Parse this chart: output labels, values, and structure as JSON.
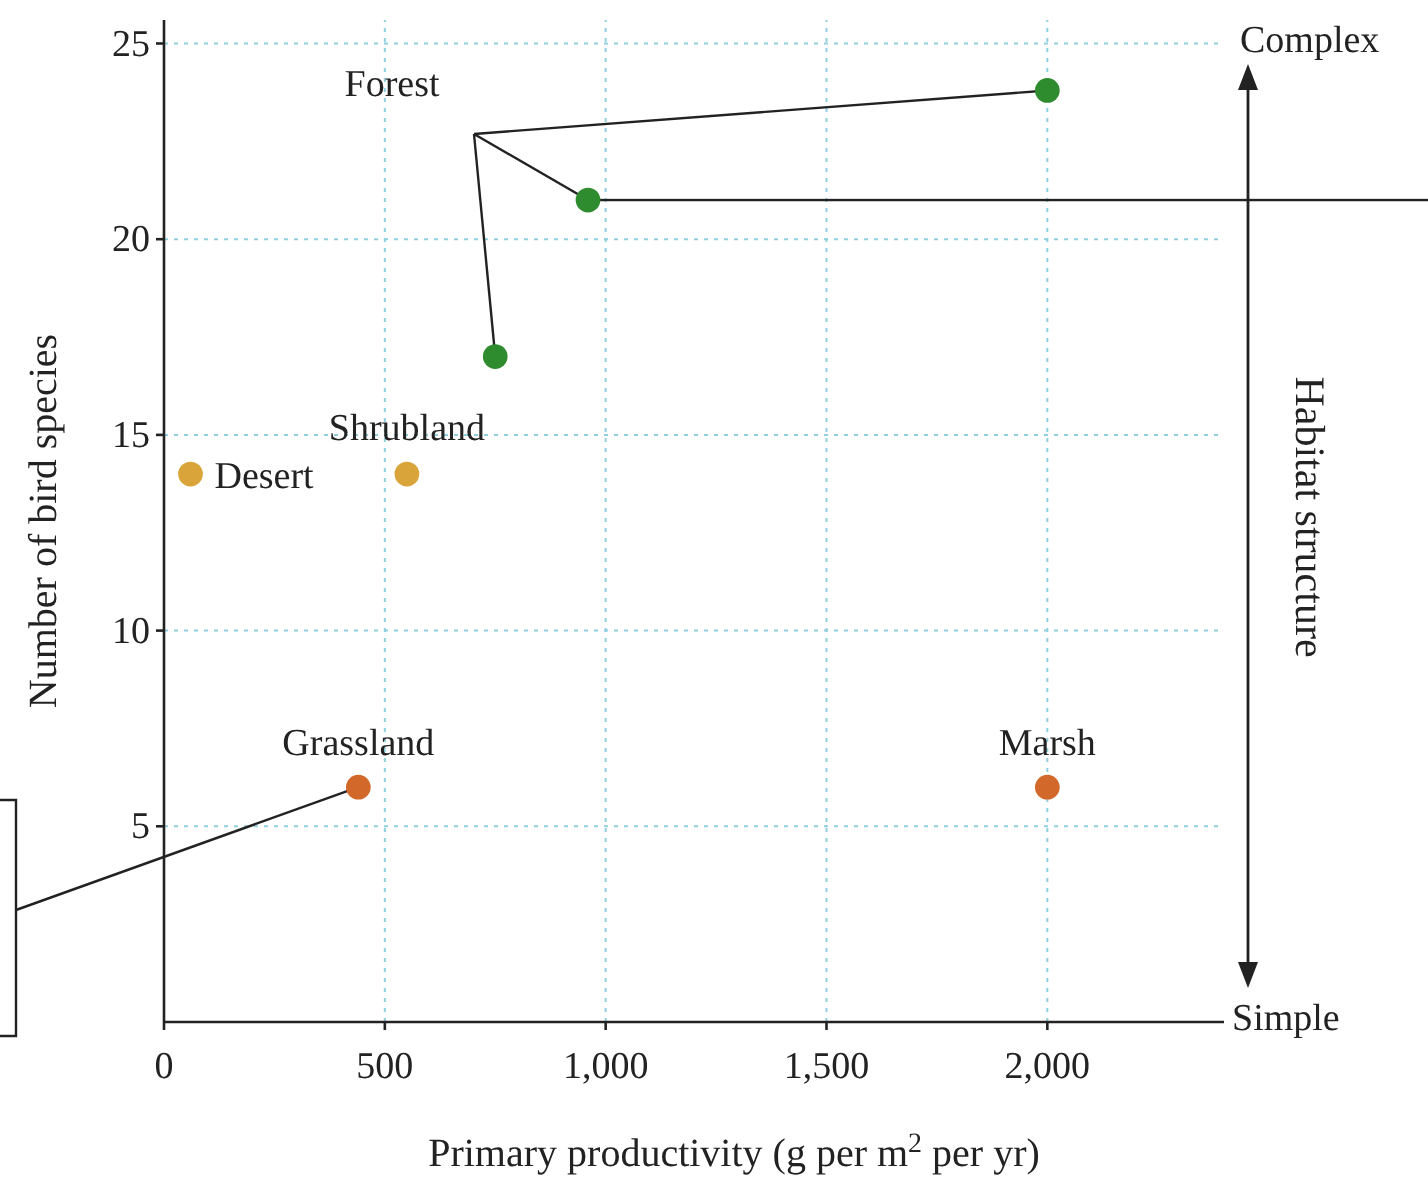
{
  "chart_data": {
    "type": "scatter",
    "xlabel": "Primary productivity (g per m$^{2}$ per yr)",
    "ylabel": "Number of bird species",
    "xlim": [
      0,
      2400
    ],
    "ylim": [
      0,
      25.6
    ],
    "xticks": [
      0,
      500,
      {
        "value": 1000,
        "label": "1,000"
      },
      {
        "value": 1500,
        "label": "1,500"
      },
      {
        "value": 2000,
        "label": "2,000"
      }
    ],
    "yticks": [
      5,
      10,
      15,
      20,
      25
    ],
    "grid": true,
    "marker": "circle",
    "legend": false,
    "series": [
      {
        "name": "Forest",
        "color": "#2e8b2e",
        "x": [
          2000,
          960,
          750
        ],
        "values": [
          23.8,
          21,
          17
        ]
      },
      {
        "name": "Shrubland",
        "color": "#d9a53a",
        "x": [
          550
        ],
        "values": [
          14
        ]
      },
      {
        "name": "Desert",
        "color": "#d9a53a",
        "x": [
          60
        ],
        "values": [
          14
        ]
      },
      {
        "name": "Grassland",
        "color": "#d2692a",
        "x": [
          440
        ],
        "values": [
          6
        ]
      },
      {
        "name": "Marsh",
        "color": "#d2692a",
        "x": [
          2000
        ],
        "values": [
          6
        ]
      }
    ],
    "annotations": [
      "Complex",
      "Simple",
      "Habitat structure"
    ]
  }
}
